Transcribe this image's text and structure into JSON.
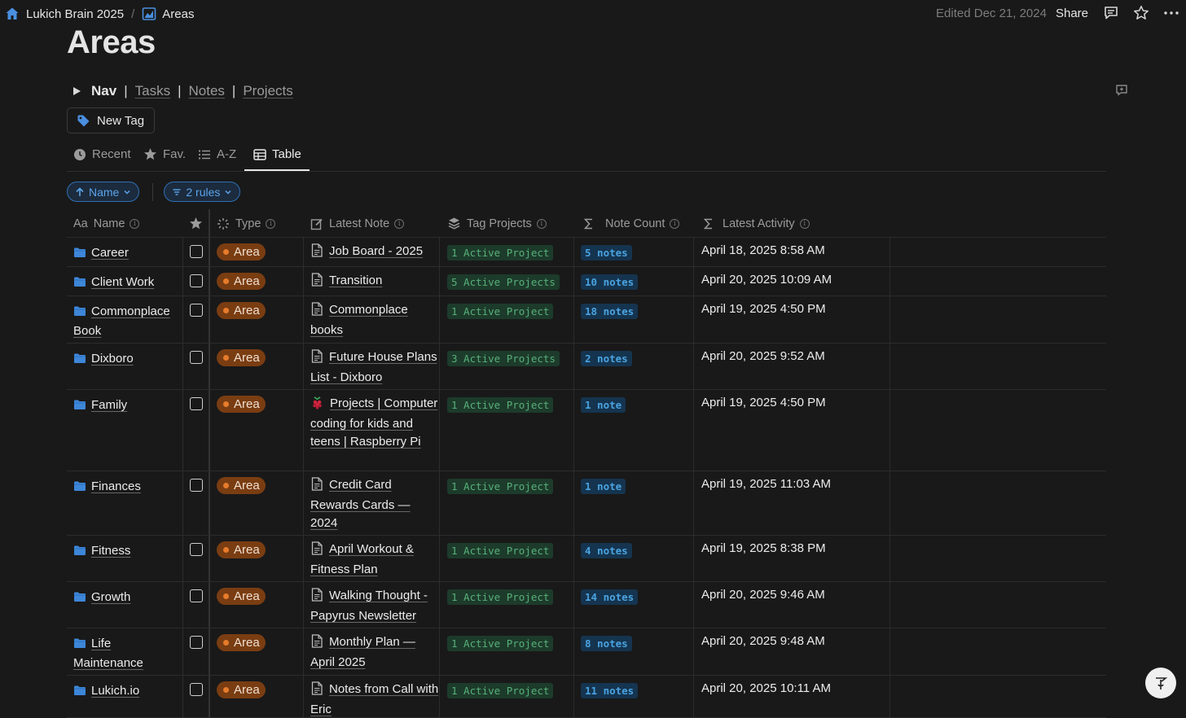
{
  "breadcrumb": {
    "workspace": "Lukich Brain 2025",
    "separator": "/",
    "page": "Areas"
  },
  "header": {
    "edited": "Edited Dec 21, 2024",
    "share_label": "Share"
  },
  "title": "Areas",
  "nav": {
    "label": "Nav",
    "separator": "|",
    "links": [
      "Tasks",
      "Notes",
      "Projects"
    ]
  },
  "new_tag_label": "New Tag",
  "views": [
    "Recent",
    "Fav.",
    "A-Z",
    "Table"
  ],
  "active_view": "Table",
  "filters": {
    "sort_label": "Name",
    "rules_label": "2 rules"
  },
  "columns": {
    "name": "Name",
    "name_prefix": "Aa",
    "type": "Type",
    "latest_note": "Latest Note",
    "tag_projects": "Tag Projects",
    "note_count": "Note Count",
    "latest_activity": "Latest Activity"
  },
  "rows": [
    {
      "name": "Career",
      "type": "Area",
      "latest_note": "Job Board - 2025",
      "note_icon": "page-icon",
      "tag_projects": "1 Active Project",
      "note_count": "5 notes",
      "latest_activity": "April 18, 2025 8:58 AM"
    },
    {
      "name": "Client Work",
      "type": "Area",
      "latest_note": "Transition",
      "note_icon": "page-icon",
      "tag_projects": "5 Active Projects",
      "note_count": "10 notes",
      "latest_activity": "April 20, 2025 10:09 AM"
    },
    {
      "name": "Commonplace Book",
      "type": "Area",
      "latest_note": "Commonplace books",
      "note_icon": "page-icon",
      "tag_projects": "1 Active Project",
      "note_count": "18 notes",
      "latest_activity": "April 19, 2025 4:50 PM"
    },
    {
      "name": "Dixboro",
      "type": "Area",
      "latest_note": "Future House Plans List - Dixboro",
      "note_icon": "page-icon",
      "tag_projects": "3 Active Projects",
      "note_count": "2 notes",
      "latest_activity": "April 20, 2025 9:52 AM"
    },
    {
      "name": "Family",
      "type": "Area",
      "latest_note": "Projects | Computer coding for kids and teens | Raspberry Pi",
      "note_icon": "raspberry-icon",
      "tag_projects": "1 Active Project",
      "note_count": "1 note",
      "latest_activity": "April 19, 2025 4:50 PM"
    },
    {
      "name": "Finances",
      "type": "Area",
      "latest_note": "Credit Card Rewards Cards — 2024",
      "note_icon": "page-icon",
      "tag_projects": "1 Active Project",
      "note_count": "1 note",
      "latest_activity": "April 19, 2025 11:03 AM"
    },
    {
      "name": "Fitness",
      "type": "Area",
      "latest_note": "April Workout & Fitness Plan",
      "note_icon": "page-icon",
      "tag_projects": "1 Active Project",
      "note_count": "4 notes",
      "latest_activity": "April 19, 2025 8:38 PM"
    },
    {
      "name": "Growth",
      "type": "Area",
      "latest_note": "Walking Thought - Papyrus Newsletter",
      "note_icon": "page-icon",
      "tag_projects": "1 Active Project",
      "note_count": "14 notes",
      "latest_activity": "April 20, 2025 9:46 AM"
    },
    {
      "name": "Life Maintenance",
      "type": "Area",
      "latest_note": "Monthly Plan — April 2025",
      "note_icon": "page-icon",
      "tag_projects": "1 Active Project",
      "note_count": "8 notes",
      "latest_activity": "April 20, 2025 9:48 AM"
    },
    {
      "name": "Lukich.io",
      "type": "Area",
      "latest_note": "Notes from Call with Eric",
      "note_icon": "page-icon",
      "tag_projects": "1 Active Project",
      "note_count": "11 notes",
      "latest_activity": "April 20, 2025 10:11 AM"
    }
  ],
  "colors": {
    "background": "#191919",
    "accent_blue": "#2f6fb6",
    "area_badge": "#7a3d12",
    "project_badge": "#1d3b2b",
    "count_badge": "#15344f"
  }
}
